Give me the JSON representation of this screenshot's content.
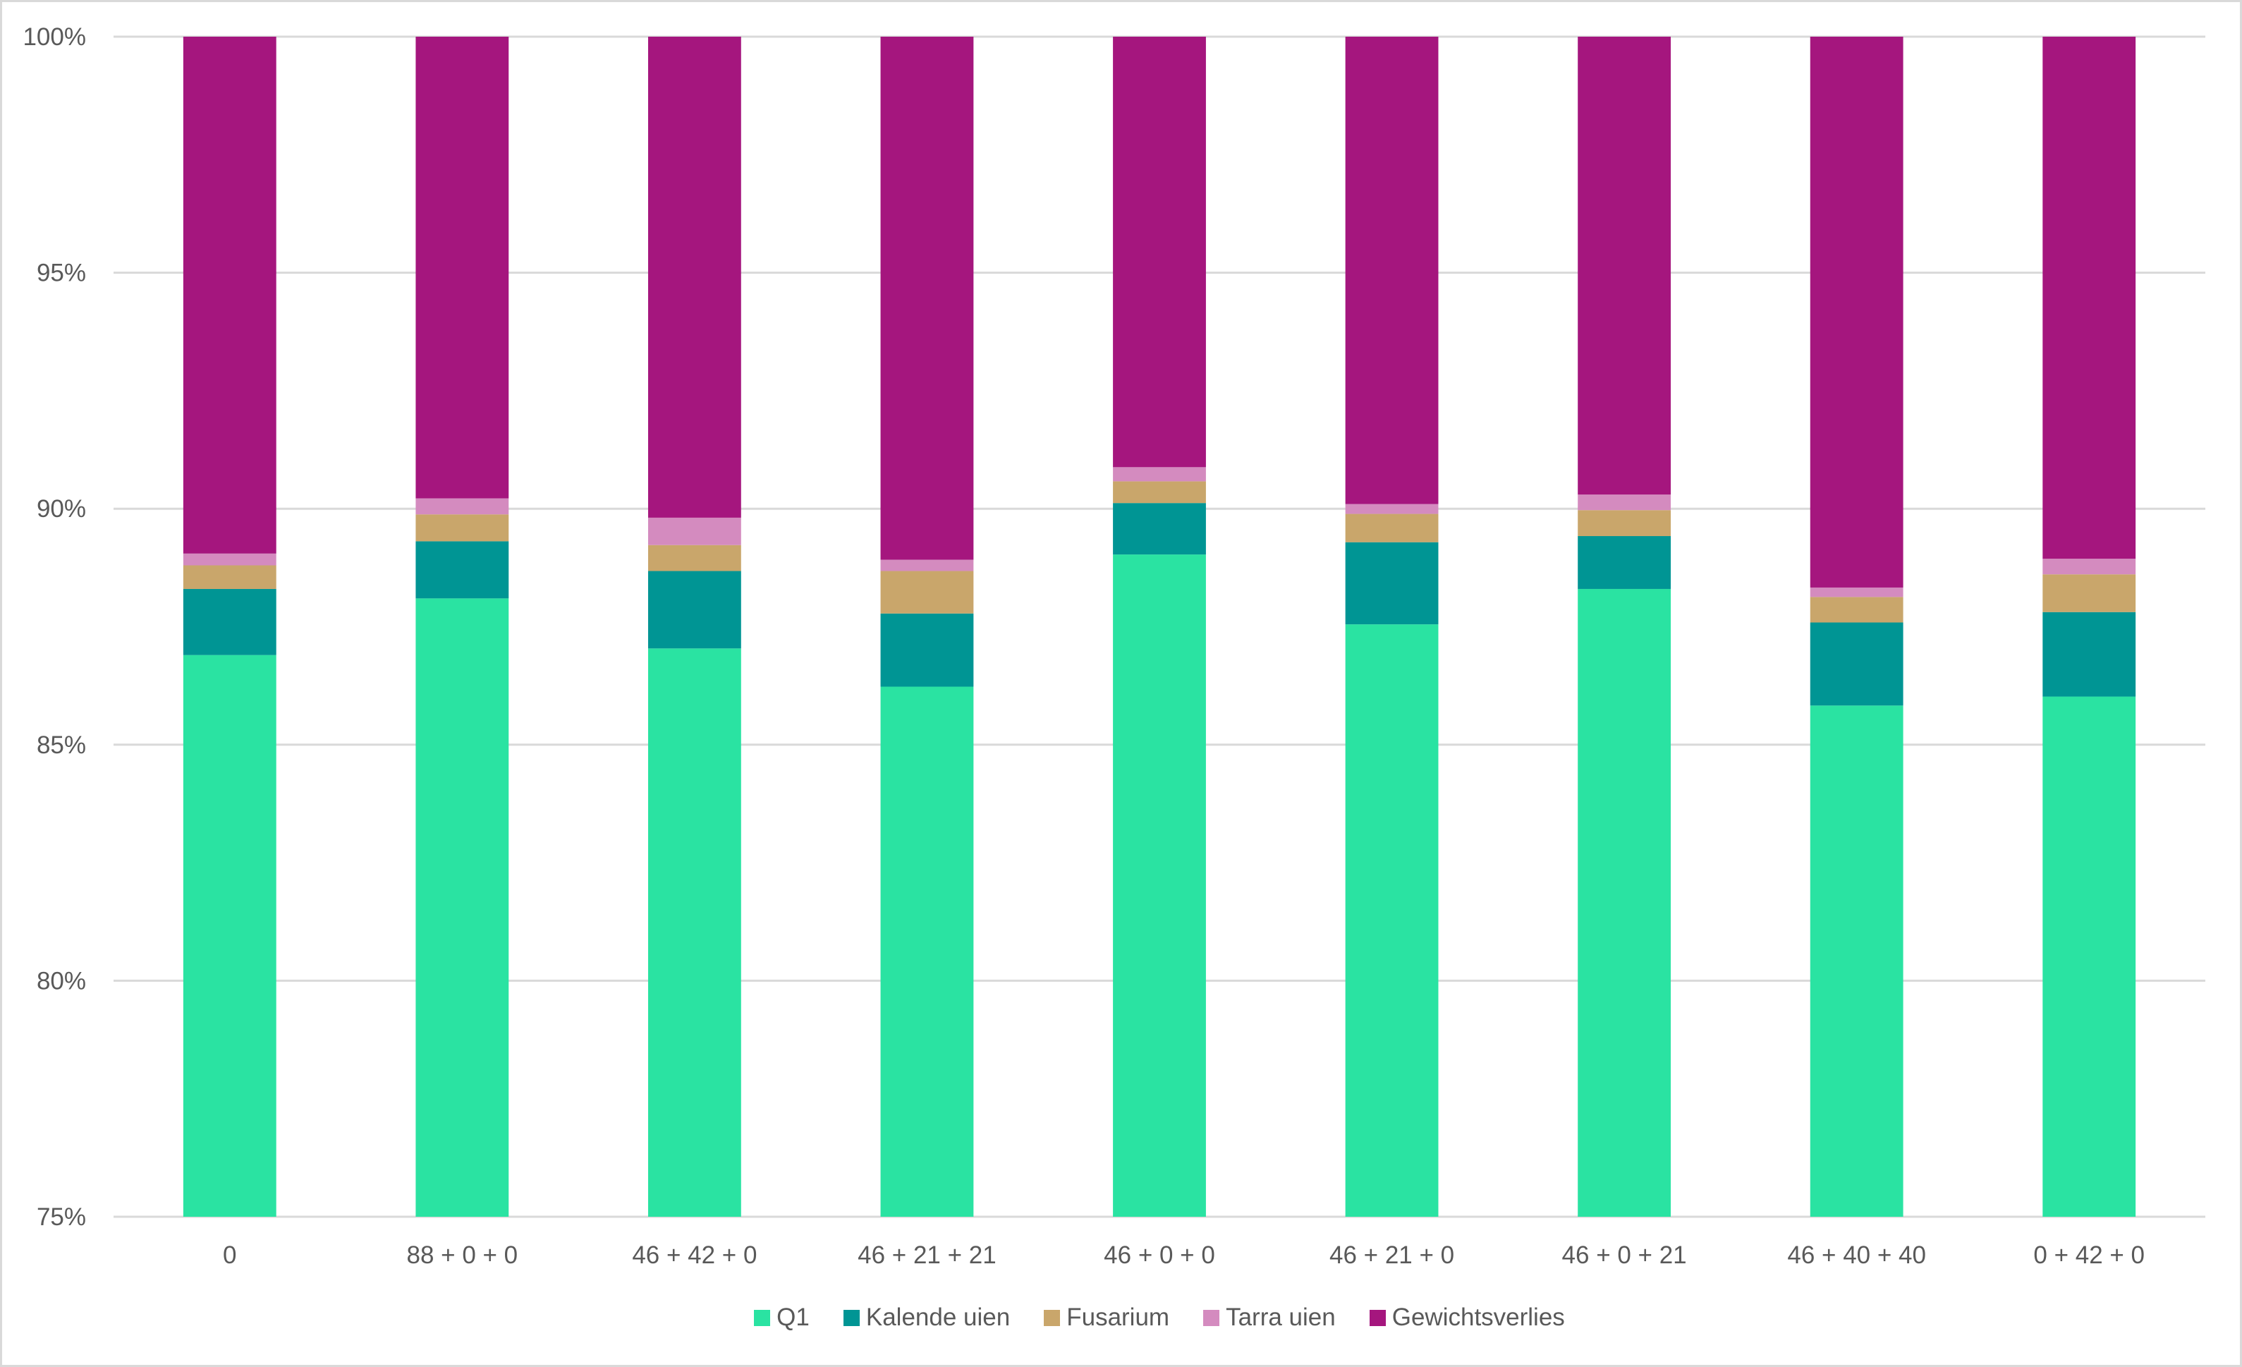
{
  "chart_data": {
    "type": "bar",
    "stacked": true,
    "title": "",
    "xlabel": "",
    "ylabel": "",
    "ylim": [
      75,
      100
    ],
    "y_unit": "%",
    "y_ticks": [
      "75%",
      "80%",
      "85%",
      "90%",
      "95%",
      "100%"
    ],
    "y_tick_values": [
      75,
      80,
      85,
      90,
      95,
      100
    ],
    "grid": true,
    "legend_position": "bottom",
    "categories": [
      "0",
      "88 + 0 + 0",
      "46 + 42 + 0",
      "46 + 21 + 21",
      "46 + 0 + 0",
      "46 + 21 + 0",
      "46 + 0 + 21",
      "46 + 40 + 40",
      "0 + 42 + 0"
    ],
    "series": [
      {
        "name": "Q1",
        "color": "#2ae3a2",
        "values": [
          86.9,
          88.1,
          87.04,
          86.23,
          89.03,
          87.55,
          88.3,
          85.83,
          86.02
        ]
      },
      {
        "name": "Kalende uien",
        "color": "#009594",
        "values": [
          1.4,
          1.21,
          1.64,
          1.55,
          1.09,
          1.74,
          1.12,
          1.76,
          1.79
        ]
      },
      {
        "name": "Fusarium",
        "color": "#c9a66b",
        "values": [
          0.5,
          0.57,
          0.55,
          0.9,
          0.46,
          0.6,
          0.55,
          0.54,
          0.8
        ]
      },
      {
        "name": "Tarra uien",
        "color": "#d48bbf",
        "values": [
          0.25,
          0.34,
          0.58,
          0.24,
          0.3,
          0.21,
          0.33,
          0.2,
          0.33
        ]
      },
      {
        "name": "Gewichtsverlies",
        "color": "#a5167e",
        "values": [
          10.95,
          9.78,
          10.19,
          11.08,
          9.12,
          9.9,
          9.7,
          11.67,
          11.06
        ]
      }
    ]
  },
  "legend": {
    "items": [
      {
        "label": "Q1"
      },
      {
        "label": "Kalende uien"
      },
      {
        "label": "Fusarium"
      },
      {
        "label": "Tarra uien"
      },
      {
        "label": "Gewichtsverlies"
      }
    ]
  }
}
